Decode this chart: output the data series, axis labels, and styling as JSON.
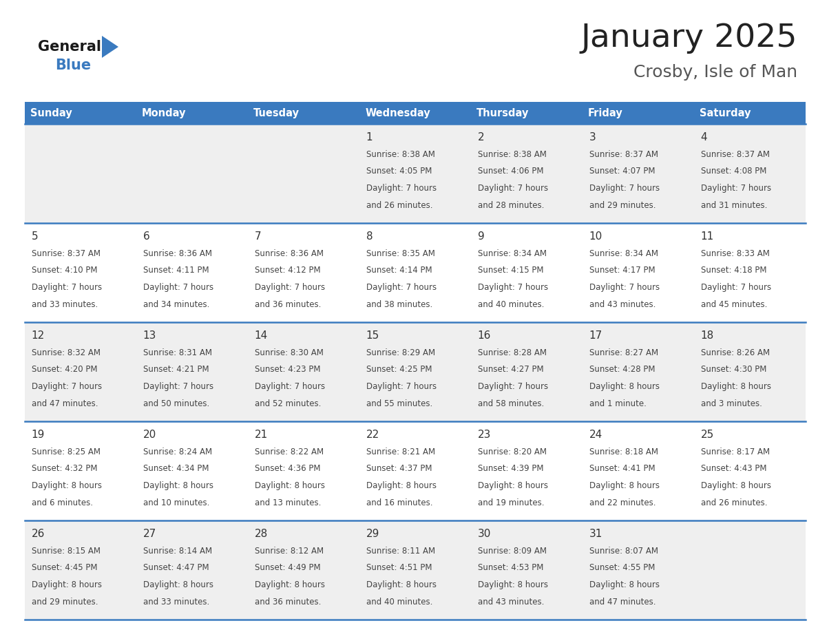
{
  "title": "January 2025",
  "subtitle": "Crosby, Isle of Man",
  "days_of_week": [
    "Sunday",
    "Monday",
    "Tuesday",
    "Wednesday",
    "Thursday",
    "Friday",
    "Saturday"
  ],
  "header_bg": "#3a7abf",
  "header_text": "#ffffff",
  "row_bg_light": "#efefef",
  "row_bg_white": "#ffffff",
  "cell_text_color": "#444444",
  "day_num_color": "#333333",
  "divider_color": "#3a7abf",
  "title_color": "#222222",
  "subtitle_color": "#555555",
  "calendar_data": [
    [
      {
        "day": "",
        "sunrise": "",
        "sunset": "",
        "daylight": ""
      },
      {
        "day": "",
        "sunrise": "",
        "sunset": "",
        "daylight": ""
      },
      {
        "day": "",
        "sunrise": "",
        "sunset": "",
        "daylight": ""
      },
      {
        "day": "1",
        "sunrise": "8:38 AM",
        "sunset": "4:05 PM",
        "daylight": "7 hours\nand 26 minutes."
      },
      {
        "day": "2",
        "sunrise": "8:38 AM",
        "sunset": "4:06 PM",
        "daylight": "7 hours\nand 28 minutes."
      },
      {
        "day": "3",
        "sunrise": "8:37 AM",
        "sunset": "4:07 PM",
        "daylight": "7 hours\nand 29 minutes."
      },
      {
        "day": "4",
        "sunrise": "8:37 AM",
        "sunset": "4:08 PM",
        "daylight": "7 hours\nand 31 minutes."
      }
    ],
    [
      {
        "day": "5",
        "sunrise": "8:37 AM",
        "sunset": "4:10 PM",
        "daylight": "7 hours\nand 33 minutes."
      },
      {
        "day": "6",
        "sunrise": "8:36 AM",
        "sunset": "4:11 PM",
        "daylight": "7 hours\nand 34 minutes."
      },
      {
        "day": "7",
        "sunrise": "8:36 AM",
        "sunset": "4:12 PM",
        "daylight": "7 hours\nand 36 minutes."
      },
      {
        "day": "8",
        "sunrise": "8:35 AM",
        "sunset": "4:14 PM",
        "daylight": "7 hours\nand 38 minutes."
      },
      {
        "day": "9",
        "sunrise": "8:34 AM",
        "sunset": "4:15 PM",
        "daylight": "7 hours\nand 40 minutes."
      },
      {
        "day": "10",
        "sunrise": "8:34 AM",
        "sunset": "4:17 PM",
        "daylight": "7 hours\nand 43 minutes."
      },
      {
        "day": "11",
        "sunrise": "8:33 AM",
        "sunset": "4:18 PM",
        "daylight": "7 hours\nand 45 minutes."
      }
    ],
    [
      {
        "day": "12",
        "sunrise": "8:32 AM",
        "sunset": "4:20 PM",
        "daylight": "7 hours\nand 47 minutes."
      },
      {
        "day": "13",
        "sunrise": "8:31 AM",
        "sunset": "4:21 PM",
        "daylight": "7 hours\nand 50 minutes."
      },
      {
        "day": "14",
        "sunrise": "8:30 AM",
        "sunset": "4:23 PM",
        "daylight": "7 hours\nand 52 minutes."
      },
      {
        "day": "15",
        "sunrise": "8:29 AM",
        "sunset": "4:25 PM",
        "daylight": "7 hours\nand 55 minutes."
      },
      {
        "day": "16",
        "sunrise": "8:28 AM",
        "sunset": "4:27 PM",
        "daylight": "7 hours\nand 58 minutes."
      },
      {
        "day": "17",
        "sunrise": "8:27 AM",
        "sunset": "4:28 PM",
        "daylight": "8 hours\nand 1 minute."
      },
      {
        "day": "18",
        "sunrise": "8:26 AM",
        "sunset": "4:30 PM",
        "daylight": "8 hours\nand 3 minutes."
      }
    ],
    [
      {
        "day": "19",
        "sunrise": "8:25 AM",
        "sunset": "4:32 PM",
        "daylight": "8 hours\nand 6 minutes."
      },
      {
        "day": "20",
        "sunrise": "8:24 AM",
        "sunset": "4:34 PM",
        "daylight": "8 hours\nand 10 minutes."
      },
      {
        "day": "21",
        "sunrise": "8:22 AM",
        "sunset": "4:36 PM",
        "daylight": "8 hours\nand 13 minutes."
      },
      {
        "day": "22",
        "sunrise": "8:21 AM",
        "sunset": "4:37 PM",
        "daylight": "8 hours\nand 16 minutes."
      },
      {
        "day": "23",
        "sunrise": "8:20 AM",
        "sunset": "4:39 PM",
        "daylight": "8 hours\nand 19 minutes."
      },
      {
        "day": "24",
        "sunrise": "8:18 AM",
        "sunset": "4:41 PM",
        "daylight": "8 hours\nand 22 minutes."
      },
      {
        "day": "25",
        "sunrise": "8:17 AM",
        "sunset": "4:43 PM",
        "daylight": "8 hours\nand 26 minutes."
      }
    ],
    [
      {
        "day": "26",
        "sunrise": "8:15 AM",
        "sunset": "4:45 PM",
        "daylight": "8 hours\nand 29 minutes."
      },
      {
        "day": "27",
        "sunrise": "8:14 AM",
        "sunset": "4:47 PM",
        "daylight": "8 hours\nand 33 minutes."
      },
      {
        "day": "28",
        "sunrise": "8:12 AM",
        "sunset": "4:49 PM",
        "daylight": "8 hours\nand 36 minutes."
      },
      {
        "day": "29",
        "sunrise": "8:11 AM",
        "sunset": "4:51 PM",
        "daylight": "8 hours\nand 40 minutes."
      },
      {
        "day": "30",
        "sunrise": "8:09 AM",
        "sunset": "4:53 PM",
        "daylight": "8 hours\nand 43 minutes."
      },
      {
        "day": "31",
        "sunrise": "8:07 AM",
        "sunset": "4:55 PM",
        "daylight": "8 hours\nand 47 minutes."
      },
      {
        "day": "",
        "sunrise": "",
        "sunset": "",
        "daylight": ""
      }
    ]
  ]
}
